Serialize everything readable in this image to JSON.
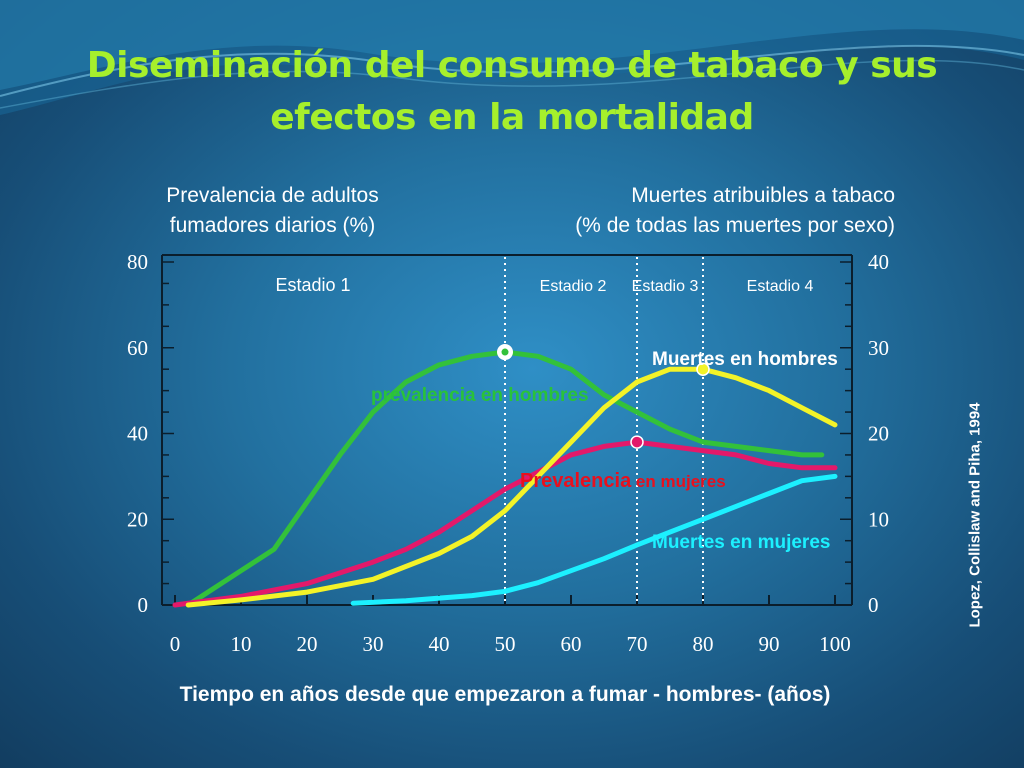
{
  "title": "Diseminación del consumo de tabaco y sus efectos en la mortalidad",
  "left_axis_header": [
    "Prevalencia de adultos",
    "fumadores diarios (%)"
  ],
  "right_axis_header": [
    "Muertes atribuibles a tabaco",
    "(%  de todas las muertes por sexo)"
  ],
  "source": "Lopez, Collislaw and Piha, 1994",
  "chart_data": {
    "type": "line",
    "xlabel": "Tiempo en años desde que empezaron a fumar - hombres- (años)",
    "x_ticks": [
      0,
      10,
      20,
      30,
      40,
      50,
      60,
      70,
      80,
      90,
      100
    ],
    "xlim": [
      0,
      100
    ],
    "y_left": {
      "ylim": [
        0,
        80
      ],
      "ticks": [
        0,
        20,
        40,
        60,
        80
      ]
    },
    "y_right": {
      "ylim": [
        0,
        40
      ],
      "ticks": [
        0,
        10,
        20,
        30,
        40
      ]
    },
    "stages": [
      {
        "label": "Estadio 1",
        "start": 0,
        "end": 50
      },
      {
        "label": "Estadio 2",
        "start": 50,
        "end": 70
      },
      {
        "label": "Estadio 3",
        "start": 70,
        "end": 80
      },
      {
        "label": "Estadio 4",
        "start": 80,
        "end": 100
      }
    ],
    "series": [
      {
        "name": "prevalencia en hombres",
        "axis": "left",
        "color": "#33c13a",
        "label_color": "#29c23a",
        "points": [
          [
            2,
            0
          ],
          [
            10,
            8
          ],
          [
            15,
            13
          ],
          [
            20,
            24
          ],
          [
            25,
            35
          ],
          [
            30,
            45
          ],
          [
            35,
            52
          ],
          [
            40,
            56
          ],
          [
            45,
            58
          ],
          [
            50,
            59
          ],
          [
            55,
            58
          ],
          [
            60,
            55
          ],
          [
            65,
            49
          ],
          [
            70,
            45
          ],
          [
            75,
            41
          ],
          [
            80,
            38
          ],
          [
            85,
            37
          ],
          [
            90,
            36
          ],
          [
            95,
            35
          ],
          [
            98,
            35
          ]
        ],
        "peak": [
          50,
          59
        ]
      },
      {
        "name": "Prevalencia en mujeres",
        "axis": "left",
        "color": "#e3196a",
        "label_color": "#e8101e",
        "points": [
          [
            0,
            0
          ],
          [
            10,
            2
          ],
          [
            20,
            5
          ],
          [
            30,
            10
          ],
          [
            35,
            13
          ],
          [
            40,
            17
          ],
          [
            45,
            22
          ],
          [
            50,
            27
          ],
          [
            55,
            31
          ],
          [
            60,
            35
          ],
          [
            65,
            37
          ],
          [
            70,
            38
          ],
          [
            75,
            37
          ],
          [
            80,
            36
          ],
          [
            85,
            35
          ],
          [
            90,
            33
          ],
          [
            95,
            32
          ],
          [
            100,
            32
          ]
        ],
        "peak": [
          70,
          38
        ]
      },
      {
        "name": "Muertes en hombres",
        "axis": "right",
        "color": "#f3f328",
        "label_color": "#ffffff",
        "points": [
          [
            2,
            0
          ],
          [
            10,
            0.6
          ],
          [
            20,
            1.5
          ],
          [
            30,
            3
          ],
          [
            40,
            6
          ],
          [
            45,
            8
          ],
          [
            50,
            11
          ],
          [
            55,
            15
          ],
          [
            60,
            19
          ],
          [
            65,
            23
          ],
          [
            70,
            26
          ],
          [
            75,
            27.5
          ],
          [
            80,
            27.5
          ],
          [
            85,
            26.5
          ],
          [
            90,
            25
          ],
          [
            95,
            23
          ],
          [
            100,
            21
          ]
        ],
        "peak": [
          80,
          27.5
        ]
      },
      {
        "name": "Muertes en mujeres",
        "axis": "right",
        "color": "#1cf0ff",
        "label_color": "#1cf0ff",
        "points": [
          [
            27,
            0.2
          ],
          [
            35,
            0.5
          ],
          [
            40,
            0.8
          ],
          [
            45,
            1.1
          ],
          [
            50,
            1.6
          ],
          [
            55,
            2.6
          ],
          [
            60,
            4
          ],
          [
            65,
            5.4
          ],
          [
            70,
            7
          ],
          [
            75,
            8.5
          ],
          [
            80,
            10
          ],
          [
            85,
            11.5
          ],
          [
            90,
            13
          ],
          [
            95,
            14.5
          ],
          [
            100,
            15
          ]
        ]
      }
    ]
  }
}
